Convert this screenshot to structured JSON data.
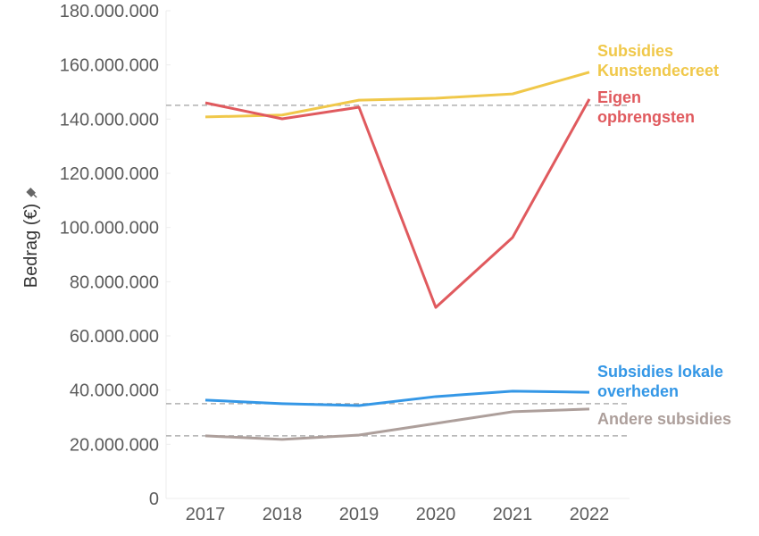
{
  "chart_data": {
    "type": "line",
    "title": "",
    "xlabel": "",
    "ylabel": "Bedrag (€)",
    "ylabel_icon": "pin-icon",
    "x": [
      "2017",
      "2018",
      "2019",
      "2020",
      "2021",
      "2022"
    ],
    "ylim": [
      0,
      180000000
    ],
    "yticks": [
      0,
      20000000,
      40000000,
      60000000,
      80000000,
      100000000,
      120000000,
      140000000,
      160000000,
      180000000
    ],
    "ytick_labels": [
      "0",
      "20.000.000",
      "40.000.000",
      "60.000.000",
      "80.000.000",
      "100.000.000",
      "120.000.000",
      "140.000.000",
      "160.000.000",
      "180.000.000"
    ],
    "grid": false,
    "legend": "direct-labels-right",
    "series": [
      {
        "name": "Subsidies Kunstendecreet",
        "label_lines": [
          "Subsidies",
          "Kunstendecreet"
        ],
        "color": "#f0c84a",
        "values": [
          140800000,
          141500000,
          147000000,
          147700000,
          149300000,
          157300000
        ]
      },
      {
        "name": "Eigen opbrengsten",
        "label_lines": [
          "Eigen",
          "opbrengsten"
        ],
        "color": "#e05a5e",
        "values": [
          146000000,
          140100000,
          144400000,
          70500000,
          96300000,
          147400000
        ]
      },
      {
        "name": "Subsidies lokale overheden",
        "label_lines": [
          "Subsidies lokale",
          "overheden"
        ],
        "color": "#3497e6",
        "values": [
          36300000,
          35000000,
          34300000,
          37600000,
          39600000,
          39200000
        ]
      },
      {
        "name": "Andere subsidies",
        "label_lines": [
          "Andere subsidies"
        ],
        "color": "#ad9f9b",
        "values": [
          23100000,
          21800000,
          23400000,
          27700000,
          32000000,
          33000000
        ]
      }
    ],
    "reference_lines": [
      {
        "name": "reference-line-eigen-opbrengsten",
        "value": 145100000,
        "color": "#b0b0b0",
        "style": "dashed"
      },
      {
        "name": "reference-line-lokale-overheden",
        "value": 35000000,
        "color": "#b0b0b0",
        "style": "dashed"
      },
      {
        "name": "reference-line-andere-subsidies",
        "value": 23100000,
        "color": "#b0b0b0",
        "style": "dashed"
      }
    ]
  }
}
